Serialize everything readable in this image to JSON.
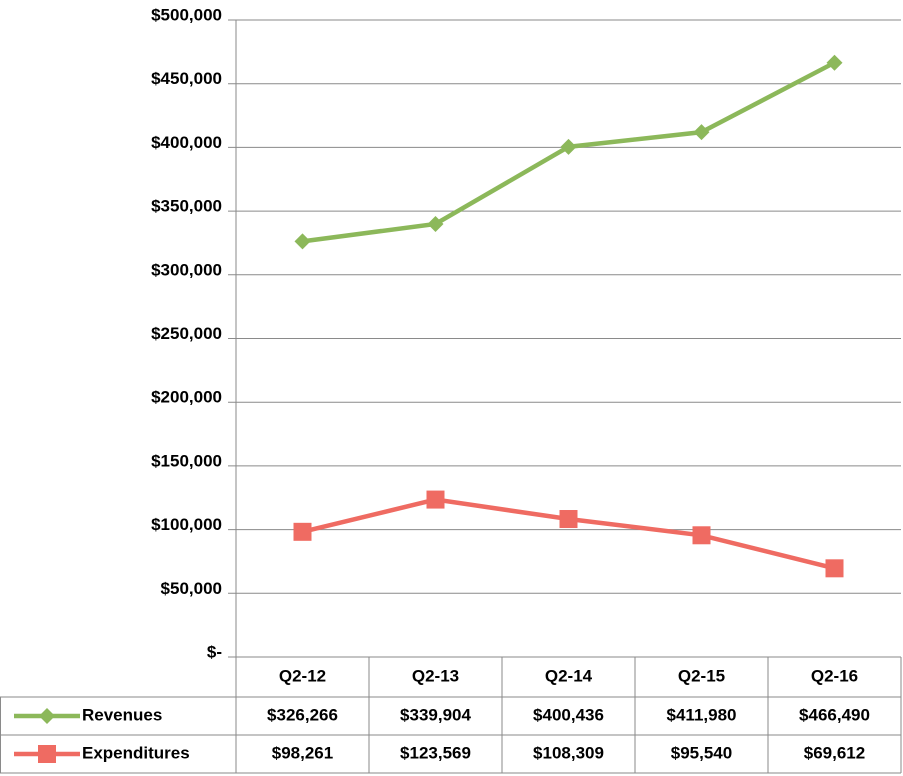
{
  "chart_data": {
    "type": "line",
    "categories": [
      "Q2-12",
      "Q2-13",
      "Q2-14",
      "Q2-15",
      "Q2-16"
    ],
    "series": [
      {
        "name": "Revenues",
        "color": "#8cb85a",
        "marker": "diamond",
        "values": [
          326266,
          339904,
          400436,
          411980,
          466490
        ],
        "value_labels": [
          "$326,266",
          "$339,904",
          "$400,436",
          "$411,980",
          "$466,490"
        ]
      },
      {
        "name": "Expenditures",
        "color": "#ef6b62",
        "marker": "square",
        "values": [
          98261,
          123569,
          108309,
          95540,
          69612
        ],
        "value_labels": [
          "$98,261",
          "$123,569",
          "$108,309",
          "$95,540",
          "$69,612"
        ]
      }
    ],
    "ylim": [
      0,
      500000
    ],
    "yticks": [
      {
        "value": 0,
        "label": "$-"
      },
      {
        "value": 50000,
        "label": "$50,000"
      },
      {
        "value": 100000,
        "label": "$100,000"
      },
      {
        "value": 150000,
        "label": "$150,000"
      },
      {
        "value": 200000,
        "label": "$200,000"
      },
      {
        "value": 250000,
        "label": "$250,000"
      },
      {
        "value": 300000,
        "label": "$300,000"
      },
      {
        "value": 350000,
        "label": "$350,000"
      },
      {
        "value": 400000,
        "label": "$400,000"
      },
      {
        "value": 450000,
        "label": "$450,000"
      },
      {
        "value": 500000,
        "label": "$500,000"
      }
    ],
    "grid": true
  }
}
